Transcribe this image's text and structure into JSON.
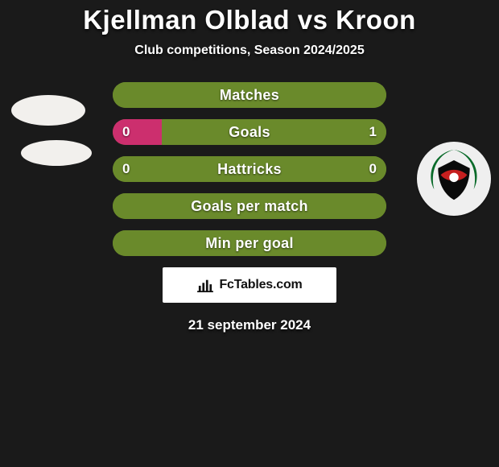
{
  "colors": {
    "bg": "#1a1a1a",
    "text": "#ffffff",
    "row_base": "#6a8a2b",
    "row_highlight": "#cc2f6e",
    "brand_box_bg": "#ffffff",
    "brand_text": "#111111",
    "placeholder": "#f2f0ed",
    "club_primary": "#c61f1f",
    "club_green": "#0a6b2a",
    "club_black": "#0a0a0a"
  },
  "title": {
    "text": "Kjellman Olblad vs Kroon",
    "fontsize": 33
  },
  "subtitle": {
    "text": "Club competitions, Season 2024/2025",
    "fontsize": 16
  },
  "rows": [
    {
      "label": "Matches",
      "left": "",
      "right": "",
      "left_pct": 100,
      "right_pct": 0,
      "show_vals": false,
      "label_fontsize": 18
    },
    {
      "label": "Goals",
      "left": "0",
      "right": "1",
      "left_pct": 18,
      "right_pct": 82,
      "show_vals": true,
      "left_color": "row_highlight",
      "right_color": "row_base",
      "label_fontsize": 18
    },
    {
      "label": "Hattricks",
      "left": "0",
      "right": "0",
      "left_pct": 100,
      "right_pct": 0,
      "show_vals": true,
      "label_fontsize": 18
    },
    {
      "label": "Goals per match",
      "left": "",
      "right": "",
      "left_pct": 100,
      "right_pct": 0,
      "show_vals": false,
      "label_fontsize": 18
    },
    {
      "label": "Min per goal",
      "left": "",
      "right": "",
      "left_pct": 100,
      "right_pct": 0,
      "show_vals": false,
      "label_fontsize": 18
    }
  ],
  "brand": {
    "text": "FcTables.com",
    "icon_name": "bar-chart-icon",
    "fontsize": 16
  },
  "date": {
    "text": "21 september 2024",
    "fontsize": 17
  },
  "club_right": {
    "name": "club-crest-icon"
  }
}
